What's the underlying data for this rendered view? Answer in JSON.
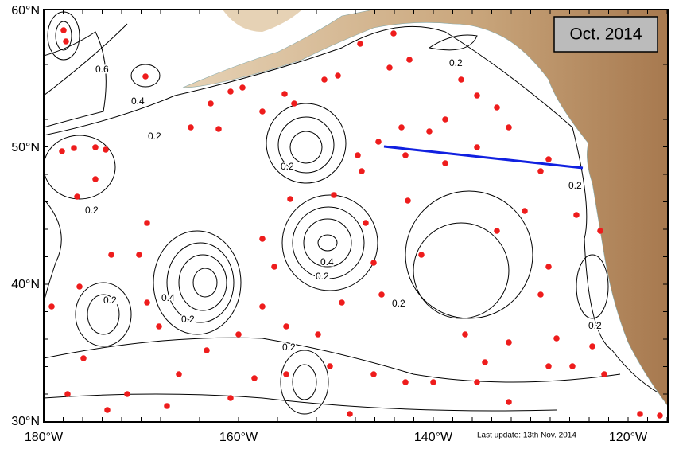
{
  "map": {
    "title": "Oct. 2014",
    "lat_labels": [
      "60°N",
      "50°N",
      "40°N",
      "30°N"
    ],
    "lon_labels": [
      "180°W",
      "160°W",
      "140°W",
      "120°W"
    ],
    "contour_labels": [
      "0.6",
      "0.4",
      "0.2",
      "0.2",
      "0.2",
      "0.2",
      "0.4",
      "0.2",
      "0.4",
      "0.2",
      "0.2",
      "0.2",
      "0.2",
      "0.2",
      "0.2"
    ],
    "footer": "Last update: 13th Nov. 2014"
  }
}
